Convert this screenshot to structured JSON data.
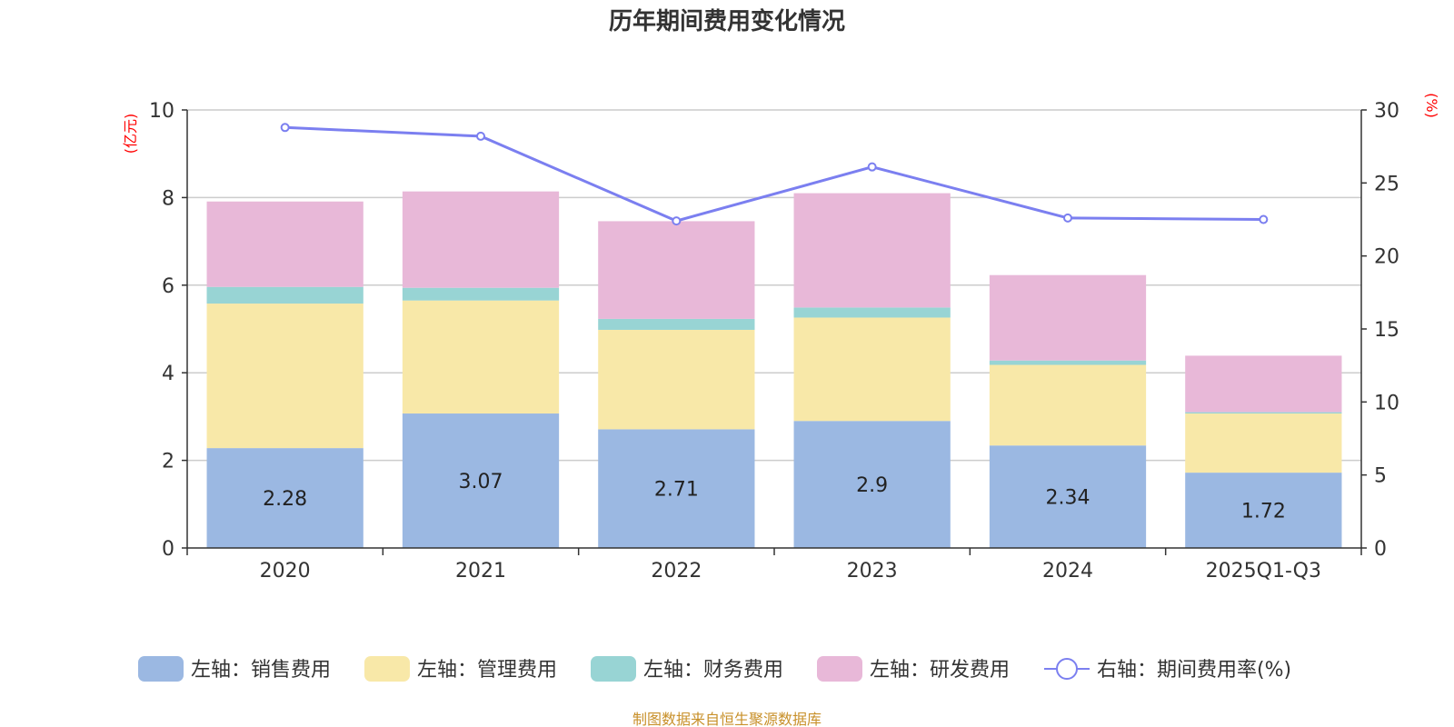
{
  "chart_data": {
    "type": "bar",
    "stacked": true,
    "title": "历年期间费用变化情况",
    "categories": [
      "2020",
      "2021",
      "2022",
      "2023",
      "2024",
      "2025Q1-Q3"
    ],
    "left_axis": {
      "unit_label": "(亿元)",
      "ylim": [
        0,
        10
      ],
      "ticks": [
        "0",
        "2",
        "4",
        "6",
        "8",
        "10"
      ]
    },
    "right_axis": {
      "unit_label": "(%)",
      "ylim": [
        0,
        30
      ],
      "ticks": [
        "0",
        "5",
        "10",
        "15",
        "20",
        "25",
        "30"
      ]
    },
    "series": [
      {
        "name": "左轴：销售费用",
        "axis": "left",
        "color": "#9bb8e2",
        "values": [
          2.28,
          3.07,
          2.71,
          2.9,
          2.34,
          1.72
        ],
        "labels": [
          "2.28",
          "3.07",
          "2.71",
          "2.9",
          "2.34",
          "1.72"
        ]
      },
      {
        "name": "左轴：管理费用",
        "axis": "left",
        "color": "#f8e8a8",
        "values": [
          3.3,
          2.58,
          2.27,
          2.36,
          1.84,
          1.35
        ]
      },
      {
        "name": "左轴：财务费用",
        "axis": "left",
        "color": "#98d4d4",
        "values": [
          0.38,
          0.29,
          0.25,
          0.23,
          0.1,
          0.03
        ]
      },
      {
        "name": "左轴：研发费用",
        "axis": "left",
        "color": "#e8b8d8",
        "values": [
          1.95,
          2.2,
          2.23,
          2.61,
          1.95,
          1.29
        ]
      }
    ],
    "line": {
      "name": "右轴：期间费用率(%)",
      "axis": "right",
      "color": "#7b7ff0",
      "values": [
        28.8,
        28.2,
        22.4,
        26.1,
        22.6,
        22.5
      ]
    },
    "legend_position": "bottom",
    "grid": true
  },
  "source_text": "制图数据来自恒生聚源数据库"
}
